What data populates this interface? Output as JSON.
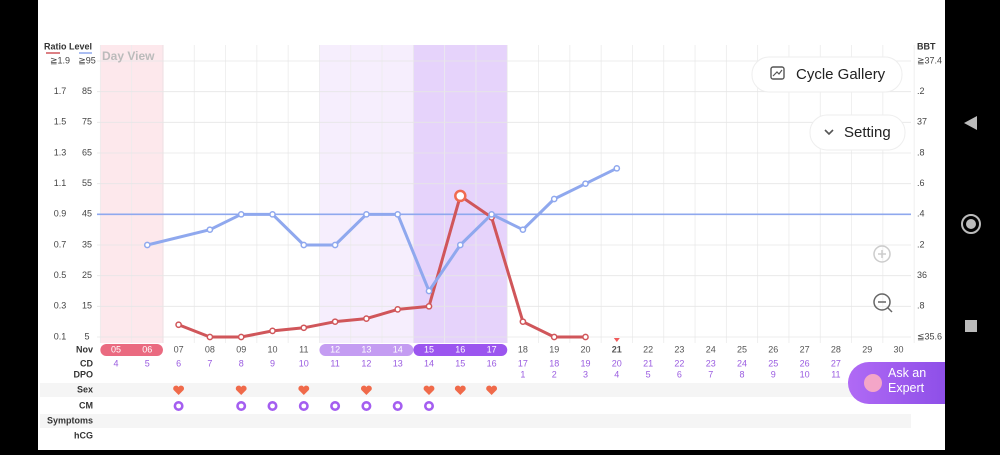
{
  "header": {
    "left_title": "Ratio Level",
    "right_title": "BBT",
    "view": "Day View"
  },
  "buttons": {
    "cycle_gallery": "Cycle Gallery",
    "setting": "Setting",
    "ask_expert": "Ask an Expert"
  },
  "chart": {
    "ratio_lim": [
      0.1,
      1.9
    ],
    "ratio_ticks": [
      0.1,
      0.3,
      0.5,
      0.7,
      0.9,
      1.1,
      1.3,
      1.5,
      1.7,
      {
        "value": 1.9,
        "label": "≧1.9"
      }
    ],
    "level_lim": [
      5,
      95
    ],
    "level_ticks": [
      5,
      15,
      25,
      35,
      45,
      55,
      65,
      75,
      85,
      {
        "value": 95,
        "label": "≧95"
      }
    ],
    "bbt_lim": [
      35.6,
      37.4
    ],
    "bbt_ticks": [
      {
        "value": 35.6,
        "label": "≦35.6"
      },
      {
        "value": 35.8,
        "label": ".8"
      },
      36,
      {
        "value": 36.2,
        "label": ".2"
      },
      {
        "value": 36.4,
        "label": ".4"
      },
      {
        "value": 36.6,
        "label": ".6"
      },
      {
        "value": 36.8,
        "label": ".8"
      },
      37,
      {
        "value": 37.2,
        "label": ".2"
      },
      {
        "value": 37.4,
        "label": "≧37.4"
      }
    ],
    "coverline": 36.4,
    "lh_color": "#d0565a",
    "bbt_color": "#8fa8ee",
    "days": [
      "05",
      "06",
      "07",
      "08",
      "09",
      "10",
      "11",
      "12",
      "13",
      "14",
      "15",
      "16",
      "17",
      "18",
      "19",
      "20",
      "21",
      "22",
      "23",
      "24",
      "25",
      "26",
      "27",
      "28",
      "29",
      "30"
    ],
    "lh": [
      null,
      null,
      9,
      5,
      5,
      7,
      8,
      10,
      11,
      14,
      15,
      51,
      44,
      10,
      5,
      5,
      null,
      null,
      null,
      null,
      null,
      null,
      null,
      null,
      null,
      null
    ],
    "bbt": [
      null,
      36.2,
      null,
      36.3,
      36.4,
      36.4,
      36.2,
      36.2,
      36.4,
      36.4,
      35.9,
      36.2,
      36.4,
      36.3,
      36.5,
      36.6,
      36.7,
      null,
      null,
      null,
      null,
      null,
      null,
      null,
      null,
      null
    ]
  },
  "rows": {
    "labels": {
      "month": "Nov",
      "cd": "CD",
      "dpo": "DPO",
      "sex": "Sex",
      "cm": "CM",
      "symptoms": "Symptoms",
      "hcg": "hCG"
    },
    "cd": [
      4,
      5,
      6,
      7,
      8,
      9,
      10,
      11,
      12,
      13,
      14,
      15,
      16,
      17,
      18,
      19,
      20,
      21,
      22,
      23,
      24,
      25,
      26,
      27,
      null,
      null
    ],
    "dpo": [
      null,
      null,
      null,
      null,
      null,
      null,
      null,
      null,
      null,
      null,
      null,
      null,
      null,
      1,
      2,
      3,
      4,
      5,
      6,
      7,
      8,
      9,
      10,
      11,
      null,
      null
    ],
    "sex": [
      false,
      false,
      true,
      false,
      true,
      false,
      true,
      false,
      true,
      false,
      true,
      true,
      true,
      false,
      false,
      false,
      false,
      false,
      false,
      false,
      false,
      false,
      false,
      false,
      false,
      false
    ],
    "cm": [
      false,
      false,
      true,
      false,
      true,
      true,
      true,
      true,
      true,
      true,
      true,
      false,
      false,
      false,
      false,
      false,
      false,
      false,
      false,
      false,
      false,
      false,
      false,
      false,
      false,
      false
    ]
  }
}
